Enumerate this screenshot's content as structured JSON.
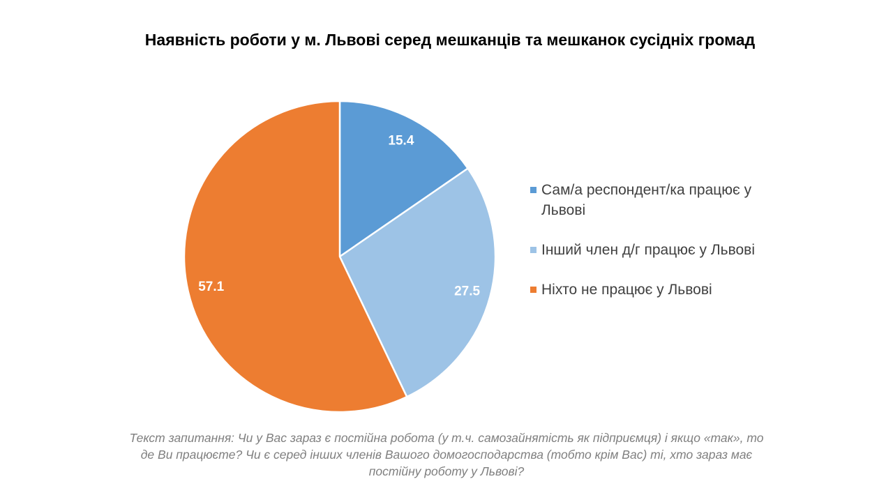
{
  "chart_data": {
    "type": "pie",
    "title": "Наявність роботи у м. Львові серед мешканців та мешканок сусідніх громад",
    "categories": [
      "Сам/а респондент/ка працює у Львові",
      "Інший член д/г працює у Львові",
      "Ніхто не працює у Львові"
    ],
    "values": [
      15.4,
      27.5,
      57.1
    ],
    "value_labels": [
      "15.4",
      "27.5",
      "57.1"
    ],
    "colors": [
      "#5b9bd5",
      "#9dc3e6",
      "#ed7d31"
    ],
    "legend_position": "right",
    "note": "Текст запитання: Чи у Вас зараз є постійна робота (у т.ч. самозайнятість як підприємця) і якщо «так», то де Ви працюєте? Чи є серед інших членів Вашого домогосподарства (тобто крім Вас) ті, хто зараз має постійну роботу у Львові?"
  }
}
